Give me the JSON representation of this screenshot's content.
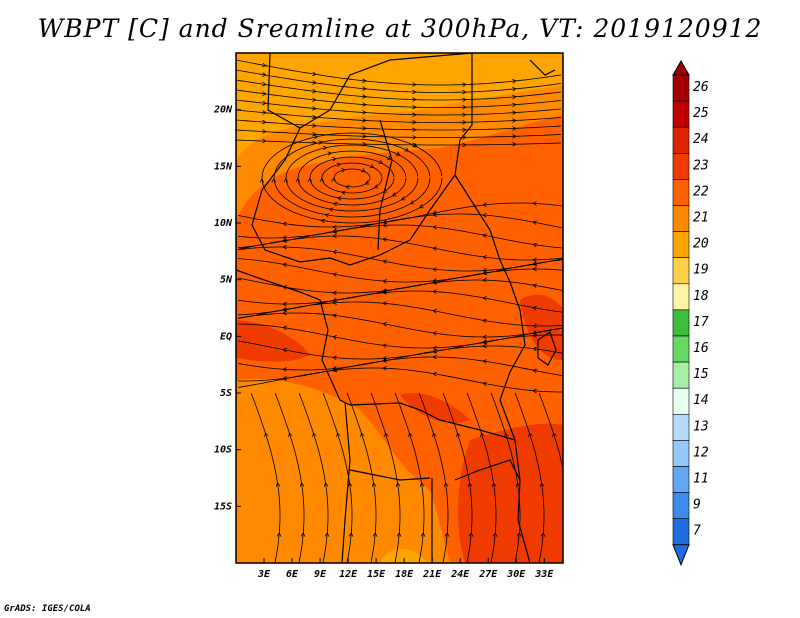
{
  "chart_data": {
    "type": "heatmap",
    "title": "WBPT [C] and Sreamline at 300hPa, VT: 2019120912",
    "xlabel": "",
    "ylabel": "",
    "x_ticks": [
      "3E",
      "6E",
      "9E",
      "12E",
      "15E",
      "18E",
      "21E",
      "24E",
      "27E",
      "30E",
      "33E"
    ],
    "x_tick_values": [
      3,
      6,
      9,
      12,
      15,
      18,
      21,
      24,
      27,
      30,
      33
    ],
    "y_ticks": [
      "20N",
      "15N",
      "10N",
      "5N",
      "EQ",
      "5S",
      "10S",
      "15S"
    ],
    "y_tick_values": [
      20,
      15,
      10,
      5,
      0,
      -5,
      -10,
      -15
    ],
    "xlim": [
      0,
      35
    ],
    "ylim": [
      -20,
      25
    ],
    "colorbar": {
      "labels": [
        "26",
        "25",
        "24",
        "23",
        "22",
        "21",
        "20",
        "19",
        "18",
        "17",
        "16",
        "15",
        "14",
        "13",
        "12",
        "11",
        "9",
        "7"
      ],
      "colors": [
        "#a00000",
        "#c00000",
        "#dd2300",
        "#f03b00",
        "#ff6000",
        "#ff8a00",
        "#ffa500",
        "#ffd04a",
        "#fff3a5",
        "#3cbd3c",
        "#64d964",
        "#a6f0a6",
        "#e6fff0",
        "#b4dcff",
        "#96c8ff",
        "#64a5f5",
        "#3c8cf0",
        "#1e6ee1"
      ]
    },
    "field_regions": [
      {
        "label": "23",
        "color": "#ff6000"
      },
      {
        "label": "22",
        "color": "#ff8a00"
      },
      {
        "label": "21",
        "color": "#ffa500"
      },
      {
        "label": "24",
        "color": "#f03b00"
      }
    ]
  },
  "footer": {
    "credit": "GrADS: IGES/COLA"
  }
}
